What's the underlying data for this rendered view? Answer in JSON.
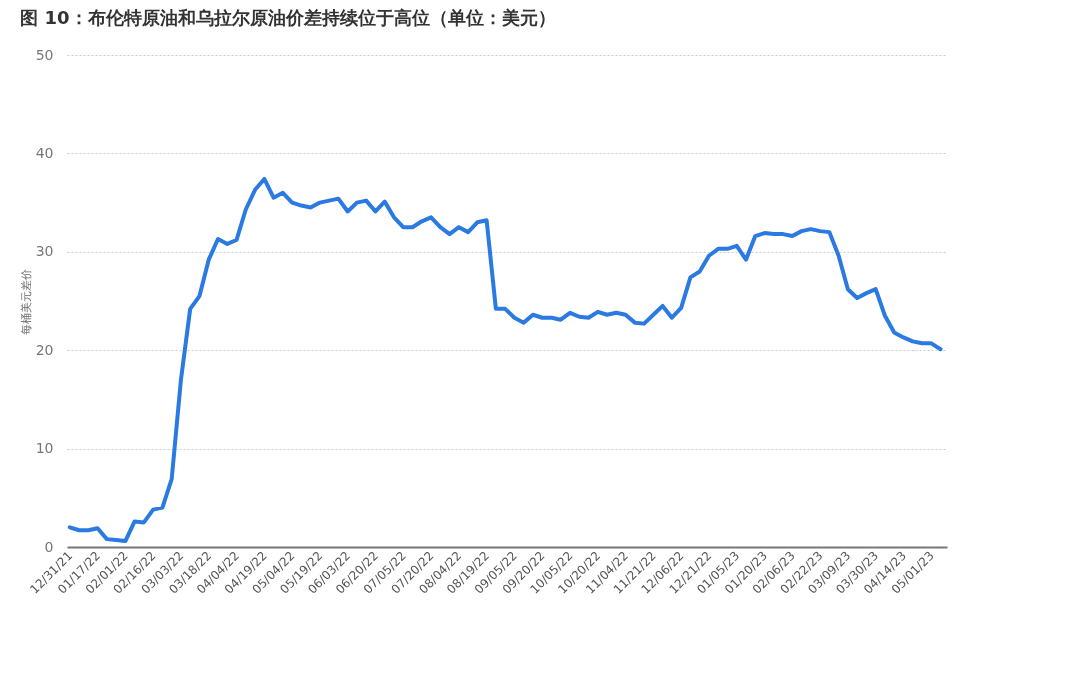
{
  "chart_data": {
    "type": "line",
    "title": "图 10：布伦特原油和乌拉尔原油价差持续位于高位（单位：美元）",
    "ylabel": "每桶美元差价",
    "categories": [
      "12/31/21",
      null,
      null,
      "01/17/22",
      null,
      null,
      "02/01/22",
      null,
      null,
      "02/16/22",
      null,
      null,
      "03/03/22",
      null,
      null,
      "03/18/22",
      null,
      null,
      "04/04/22",
      null,
      null,
      "04/19/22",
      null,
      null,
      "05/04/22",
      null,
      null,
      "05/19/22",
      null,
      null,
      "06/03/22",
      null,
      null,
      "06/20/22",
      null,
      null,
      "07/05/22",
      null,
      null,
      "07/20/22",
      null,
      null,
      "08/04/22",
      null,
      null,
      "08/19/22",
      null,
      null,
      "09/05/22",
      null,
      null,
      "09/20/22",
      null,
      null,
      "10/05/22",
      null,
      null,
      "10/20/22",
      null,
      null,
      "11/04/22",
      null,
      null,
      "11/21/22",
      null,
      null,
      "12/06/22",
      null,
      null,
      "12/21/22",
      null,
      null,
      "01/05/23",
      null,
      null,
      "01/20/23",
      null,
      null,
      "02/06/23",
      null,
      null,
      "02/22/23",
      null,
      null,
      "03/09/23",
      null,
      null,
      "03/30/23",
      null,
      null,
      "04/14/23",
      null,
      null,
      "05/01/23",
      null
    ],
    "series": [
      {
        "color": "#2a7ae2",
        "values": [
          2.0,
          1.7,
          1.7,
          1.9,
          0.8,
          0.7,
          0.6,
          2.6,
          2.5,
          3.8,
          4.0,
          6.9,
          17.0,
          24.2,
          25.5,
          29.2,
          31.3,
          30.8,
          31.2,
          34.3,
          36.3,
          37.4,
          35.5,
          36.0,
          35.0,
          34.7,
          34.5,
          35.0,
          35.2,
          35.4,
          34.1,
          35.0,
          35.2,
          34.1,
          35.1,
          33.5,
          32.5,
          32.5,
          33.1,
          33.5,
          32.5,
          31.8,
          32.5,
          32.0,
          33.0,
          33.2,
          24.2,
          24.2,
          23.3,
          22.8,
          23.6,
          23.3,
          23.3,
          23.1,
          23.8,
          23.4,
          23.3,
          23.9,
          23.6,
          23.8,
          23.6,
          22.8,
          22.7,
          23.6,
          24.5,
          23.3,
          24.3,
          27.4,
          28.0,
          29.6,
          30.3,
          30.3,
          30.6,
          29.2,
          31.6,
          31.9,
          31.8,
          31.8,
          31.6,
          32.1,
          32.3,
          32.1,
          32.0,
          29.6,
          26.2,
          25.3,
          25.8,
          26.2,
          23.5,
          21.8,
          21.3,
          20.9,
          20.7,
          20.7,
          20.1
        ]
      }
    ],
    "ylim": [
      0,
      50
    ],
    "yticks": [
      0,
      10,
      20,
      30,
      40,
      50
    ],
    "grid": "y",
    "line_style": "solid",
    "marker": "none"
  }
}
